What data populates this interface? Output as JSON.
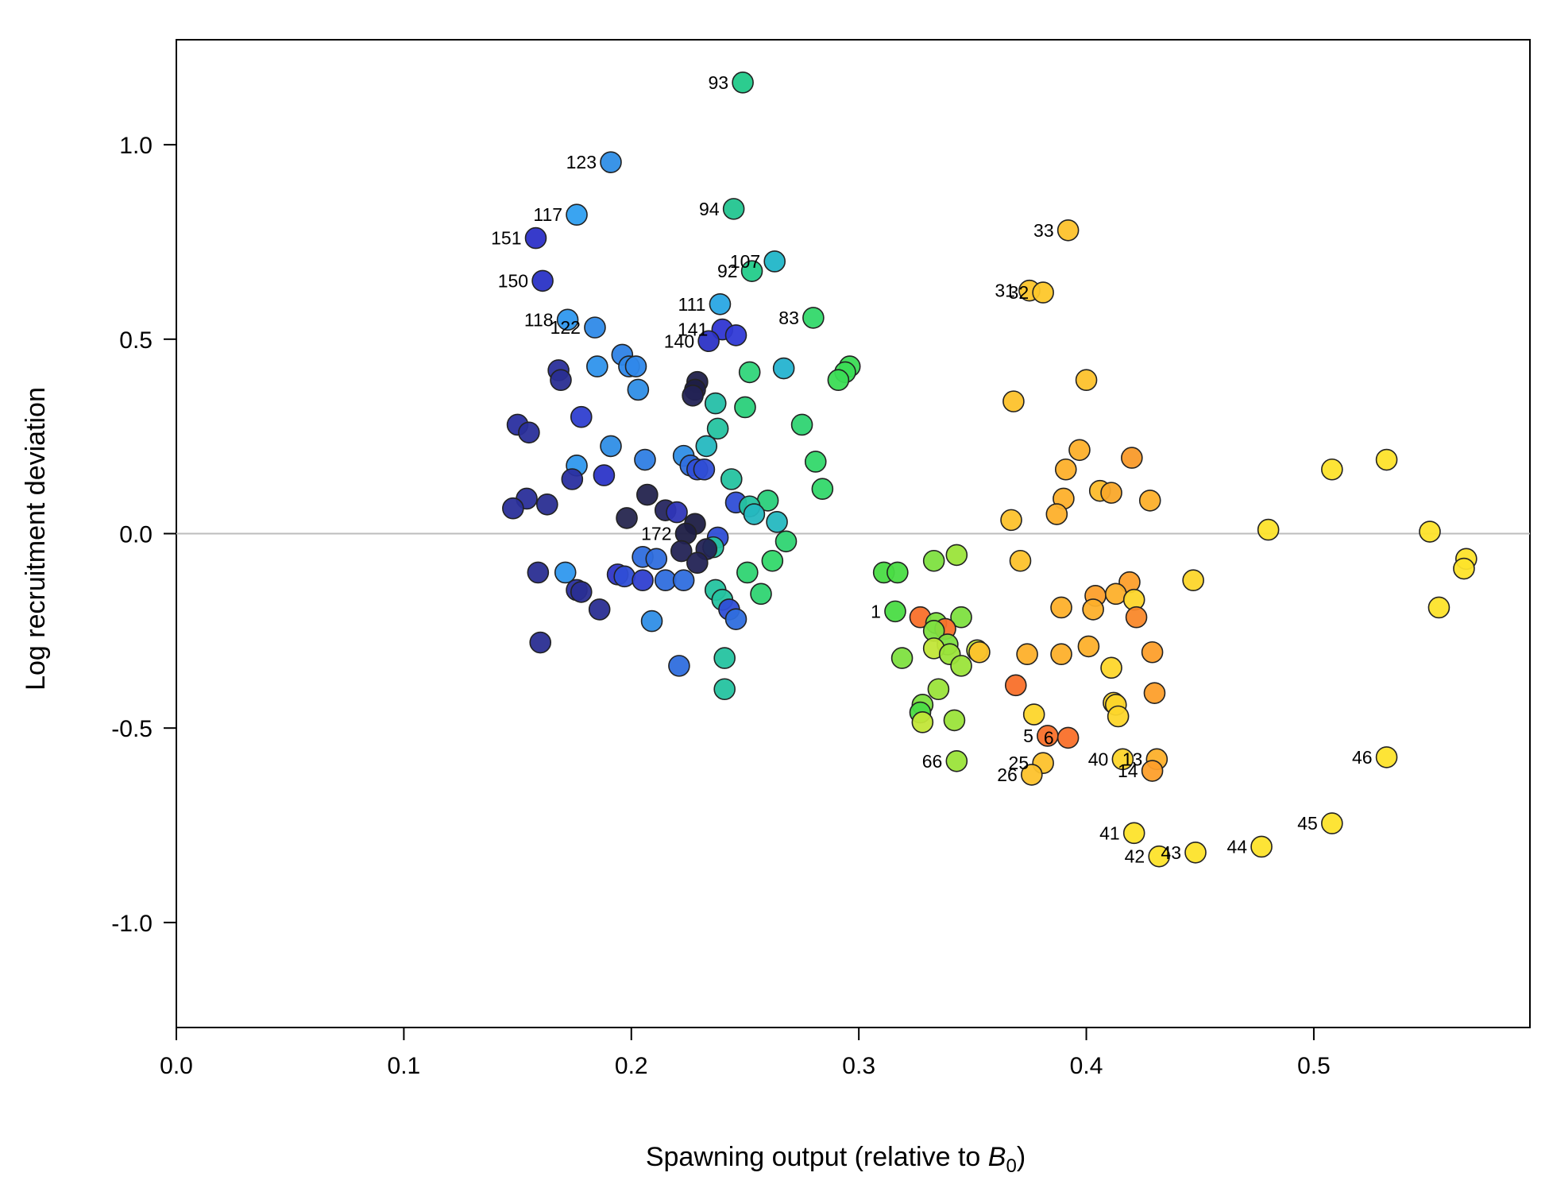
{
  "chart_data": {
    "type": "scatter",
    "title": "",
    "xlabel_main": "Spawning output (relative to ",
    "xlabel_italic": "B",
    "xlabel_sub": "0",
    "xlabel_close": ")",
    "ylabel": "Log recruitment deviation",
    "xlim": [
      0.0,
      0.595
    ],
    "ylim": [
      -1.27,
      1.27
    ],
    "x_ticks": [
      0.0,
      0.1,
      0.2,
      0.3,
      0.4,
      0.5
    ],
    "x_tick_labels": [
      "0.0",
      "0.1",
      "0.2",
      "0.3",
      "0.4",
      "0.5"
    ],
    "y_ticks": [
      -1.0,
      -0.5,
      0.0,
      0.5,
      1.0
    ],
    "y_tick_labels": [
      "-1.0",
      "-0.5",
      "0.0",
      "0.5",
      "1.0"
    ],
    "reference_line": {
      "y": 0,
      "color": "#bdbdbd"
    },
    "grid": false,
    "legend": "none",
    "color_scale": "year sequence: dark navy -> blue -> cyan -> green -> yellow -> orange",
    "points": [
      {
        "x": 0.249,
        "y": 1.16,
        "color": "#21c989",
        "label": "93"
      },
      {
        "x": 0.191,
        "y": 0.955,
        "color": "#2f8ee6",
        "label": "123"
      },
      {
        "x": 0.245,
        "y": 0.835,
        "color": "#23c590",
        "label": "94"
      },
      {
        "x": 0.176,
        "y": 0.82,
        "color": "#2f9ff0",
        "label": "117"
      },
      {
        "x": 0.158,
        "y": 0.76,
        "color": "#2c30c8",
        "label": "151"
      },
      {
        "x": 0.392,
        "y": 0.78,
        "color": "#fdc22c",
        "label": "33"
      },
      {
        "x": 0.263,
        "y": 0.7,
        "color": "#21b6c8",
        "label": "107"
      },
      {
        "x": 0.253,
        "y": 0.675,
        "color": "#23cc8a",
        "label": "92"
      },
      {
        "x": 0.161,
        "y": 0.65,
        "color": "#2a33c6",
        "label": "150"
      },
      {
        "x": 0.375,
        "y": 0.625,
        "color": "#fdc52b",
        "label": "31"
      },
      {
        "x": 0.381,
        "y": 0.62,
        "color": "#fdc72a",
        "label": "32"
      },
      {
        "x": 0.239,
        "y": 0.59,
        "color": "#29a7e4",
        "label": "111"
      },
      {
        "x": 0.28,
        "y": 0.555,
        "color": "#33d86a",
        "label": "83"
      },
      {
        "x": 0.172,
        "y": 0.55,
        "color": "#2f98ee",
        "label": "118"
      },
      {
        "x": 0.184,
        "y": 0.53,
        "color": "#2f8ae8",
        "label": "122"
      },
      {
        "x": 0.24,
        "y": 0.525,
        "color": "#3036d3",
        "label": "141"
      },
      {
        "x": 0.234,
        "y": 0.495,
        "color": "#2c33c6",
        "label": "140"
      },
      {
        "x": 0.246,
        "y": 0.51,
        "color": "#303ad6",
        "label": ""
      },
      {
        "x": 0.196,
        "y": 0.46,
        "color": "#2e82e6",
        "label": ""
      },
      {
        "x": 0.199,
        "y": 0.43,
        "color": "#2f88ea",
        "label": ""
      },
      {
        "x": 0.202,
        "y": 0.43,
        "color": "#2f88ea",
        "label": ""
      },
      {
        "x": 0.185,
        "y": 0.43,
        "color": "#2f93ec",
        "label": ""
      },
      {
        "x": 0.168,
        "y": 0.42,
        "color": "#2a2f9a",
        "label": ""
      },
      {
        "x": 0.169,
        "y": 0.395,
        "color": "#2a2e92",
        "label": ""
      },
      {
        "x": 0.252,
        "y": 0.415,
        "color": "#30d57a",
        "label": ""
      },
      {
        "x": 0.267,
        "y": 0.425,
        "color": "#25b3d0",
        "label": ""
      },
      {
        "x": 0.296,
        "y": 0.43,
        "color": "#3bdc55",
        "label": ""
      },
      {
        "x": 0.294,
        "y": 0.415,
        "color": "#3bdc55",
        "label": ""
      },
      {
        "x": 0.291,
        "y": 0.395,
        "color": "#3bdc55",
        "label": ""
      },
      {
        "x": 0.229,
        "y": 0.39,
        "color": "#20204a",
        "label": ""
      },
      {
        "x": 0.228,
        "y": 0.37,
        "color": "#1e1e44",
        "label": ""
      },
      {
        "x": 0.227,
        "y": 0.355,
        "color": "#232355",
        "label": ""
      },
      {
        "x": 0.203,
        "y": 0.37,
        "color": "#2f8ee6",
        "label": ""
      },
      {
        "x": 0.4,
        "y": 0.395,
        "color": "#fdc22c",
        "label": ""
      },
      {
        "x": 0.237,
        "y": 0.335,
        "color": "#25bfa8",
        "label": ""
      },
      {
        "x": 0.25,
        "y": 0.325,
        "color": "#2ad07a",
        "label": ""
      },
      {
        "x": 0.368,
        "y": 0.34,
        "color": "#fdc22c",
        "label": ""
      },
      {
        "x": 0.178,
        "y": 0.3,
        "color": "#2f3fd0",
        "label": ""
      },
      {
        "x": 0.15,
        "y": 0.28,
        "color": "#2a2fa0",
        "label": ""
      },
      {
        "x": 0.155,
        "y": 0.26,
        "color": "#2a2f9a",
        "label": ""
      },
      {
        "x": 0.238,
        "y": 0.27,
        "color": "#25c3a0",
        "label": ""
      },
      {
        "x": 0.275,
        "y": 0.28,
        "color": "#2fd472",
        "label": ""
      },
      {
        "x": 0.191,
        "y": 0.225,
        "color": "#2f8ee6",
        "label": ""
      },
      {
        "x": 0.233,
        "y": 0.225,
        "color": "#25b8c0",
        "label": ""
      },
      {
        "x": 0.397,
        "y": 0.215,
        "color": "#fdb02b",
        "label": ""
      },
      {
        "x": 0.42,
        "y": 0.195,
        "color": "#f99a2a",
        "label": ""
      },
      {
        "x": 0.206,
        "y": 0.19,
        "color": "#2f7ee4",
        "label": ""
      },
      {
        "x": 0.223,
        "y": 0.2,
        "color": "#2f8ee6",
        "label": ""
      },
      {
        "x": 0.226,
        "y": 0.175,
        "color": "#2f6ede",
        "label": ""
      },
      {
        "x": 0.229,
        "y": 0.165,
        "color": "#2f4ed6",
        "label": ""
      },
      {
        "x": 0.232,
        "y": 0.165,
        "color": "#2f4ed6",
        "label": ""
      },
      {
        "x": 0.176,
        "y": 0.175,
        "color": "#2f98ee",
        "label": ""
      },
      {
        "x": 0.281,
        "y": 0.185,
        "color": "#33d86a",
        "label": ""
      },
      {
        "x": 0.391,
        "y": 0.165,
        "color": "#fdb02b",
        "label": ""
      },
      {
        "x": 0.532,
        "y": 0.19,
        "color": "#fde32b",
        "label": ""
      },
      {
        "x": 0.508,
        "y": 0.165,
        "color": "#fde32b",
        "label": ""
      },
      {
        "x": 0.188,
        "y": 0.15,
        "color": "#2c35c8",
        "label": ""
      },
      {
        "x": 0.174,
        "y": 0.14,
        "color": "#2a2fa0",
        "label": ""
      },
      {
        "x": 0.244,
        "y": 0.14,
        "color": "#25c3a0",
        "label": ""
      },
      {
        "x": 0.284,
        "y": 0.115,
        "color": "#33d86a",
        "label": ""
      },
      {
        "x": 0.406,
        "y": 0.11,
        "color": "#fdbc2b",
        "label": ""
      },
      {
        "x": 0.411,
        "y": 0.105,
        "color": "#f9a82a",
        "label": ""
      },
      {
        "x": 0.207,
        "y": 0.1,
        "color": "#24244e",
        "label": ""
      },
      {
        "x": 0.154,
        "y": 0.09,
        "color": "#2a2f9a",
        "label": ""
      },
      {
        "x": 0.39,
        "y": 0.09,
        "color": "#fdb02b",
        "label": ""
      },
      {
        "x": 0.26,
        "y": 0.085,
        "color": "#2ad07a",
        "label": ""
      },
      {
        "x": 0.246,
        "y": 0.08,
        "color": "#2f4ed6",
        "label": ""
      },
      {
        "x": 0.428,
        "y": 0.085,
        "color": "#fdb02b",
        "label": ""
      },
      {
        "x": 0.163,
        "y": 0.075,
        "color": "#2a2e92",
        "label": ""
      },
      {
        "x": 0.148,
        "y": 0.065,
        "color": "#2a2f9a",
        "label": ""
      },
      {
        "x": 0.252,
        "y": 0.07,
        "color": "#25c3a0",
        "label": ""
      },
      {
        "x": 0.215,
        "y": 0.06,
        "color": "#262660",
        "label": ""
      },
      {
        "x": 0.22,
        "y": 0.055,
        "color": "#2f36b8",
        "label": ""
      },
      {
        "x": 0.387,
        "y": 0.05,
        "color": "#fdb02b",
        "label": ""
      },
      {
        "x": 0.254,
        "y": 0.05,
        "color": "#25b8c0",
        "label": ""
      },
      {
        "x": 0.198,
        "y": 0.04,
        "color": "#26264f",
        "label": ""
      },
      {
        "x": 0.367,
        "y": 0.035,
        "color": "#fdc22c",
        "label": ""
      },
      {
        "x": 0.264,
        "y": 0.03,
        "color": "#25b8c0",
        "label": ""
      },
      {
        "x": 0.228,
        "y": 0.025,
        "color": "#1e1e44",
        "label": ""
      },
      {
        "x": 0.48,
        "y": 0.01,
        "color": "#fde32b",
        "label": ""
      },
      {
        "x": 0.551,
        "y": 0.005,
        "color": "#fde32b",
        "label": ""
      },
      {
        "x": 0.224,
        "y": 0.0,
        "color": "#1e1e44",
        "label": "172"
      },
      {
        "x": 0.238,
        "y": -0.01,
        "color": "#2f4ed6",
        "label": ""
      },
      {
        "x": 0.268,
        "y": -0.02,
        "color": "#2fd472",
        "label": ""
      },
      {
        "x": 0.236,
        "y": -0.035,
        "color": "#25c3a0",
        "label": ""
      },
      {
        "x": 0.233,
        "y": -0.04,
        "color": "#232355",
        "label": ""
      },
      {
        "x": 0.222,
        "y": -0.045,
        "color": "#232355",
        "label": ""
      },
      {
        "x": 0.205,
        "y": -0.06,
        "color": "#2f6ede",
        "label": ""
      },
      {
        "x": 0.211,
        "y": -0.065,
        "color": "#2f6ede",
        "label": ""
      },
      {
        "x": 0.229,
        "y": -0.075,
        "color": "#232355",
        "label": ""
      },
      {
        "x": 0.567,
        "y": -0.065,
        "color": "#fde32b",
        "label": ""
      },
      {
        "x": 0.566,
        "y": -0.09,
        "color": "#fde32b",
        "label": ""
      },
      {
        "x": 0.262,
        "y": -0.07,
        "color": "#33d86a",
        "label": ""
      },
      {
        "x": 0.333,
        "y": -0.07,
        "color": "#7ee040",
        "label": ""
      },
      {
        "x": 0.343,
        "y": -0.055,
        "color": "#9be43a",
        "label": ""
      },
      {
        "x": 0.371,
        "y": -0.07,
        "color": "#fdc22c",
        "label": ""
      },
      {
        "x": 0.171,
        "y": -0.1,
        "color": "#2f98ee",
        "label": ""
      },
      {
        "x": 0.159,
        "y": -0.1,
        "color": "#2a2e92",
        "label": ""
      },
      {
        "x": 0.194,
        "y": -0.105,
        "color": "#2f36c8",
        "label": ""
      },
      {
        "x": 0.197,
        "y": -0.11,
        "color": "#2f4ed6",
        "label": ""
      },
      {
        "x": 0.205,
        "y": -0.12,
        "color": "#2f3fd0",
        "label": ""
      },
      {
        "x": 0.215,
        "y": -0.12,
        "color": "#2f6ede",
        "label": ""
      },
      {
        "x": 0.223,
        "y": -0.12,
        "color": "#2f6ede",
        "label": ""
      },
      {
        "x": 0.251,
        "y": -0.1,
        "color": "#2fd472",
        "label": ""
      },
      {
        "x": 0.311,
        "y": -0.1,
        "color": "#4adc44",
        "label": ""
      },
      {
        "x": 0.317,
        "y": -0.1,
        "color": "#4adc44",
        "label": ""
      },
      {
        "x": 0.447,
        "y": -0.12,
        "color": "#fdd62b",
        "label": ""
      },
      {
        "x": 0.176,
        "y": -0.145,
        "color": "#2a2fa0",
        "label": ""
      },
      {
        "x": 0.178,
        "y": -0.15,
        "color": "#2a2e92",
        "label": ""
      },
      {
        "x": 0.237,
        "y": -0.145,
        "color": "#25c3a0",
        "label": ""
      },
      {
        "x": 0.257,
        "y": -0.155,
        "color": "#2fd472",
        "label": ""
      },
      {
        "x": 0.404,
        "y": -0.16,
        "color": "#fd9f2b",
        "label": ""
      },
      {
        "x": 0.419,
        "y": -0.125,
        "color": "#fd9f2b",
        "label": ""
      },
      {
        "x": 0.413,
        "y": -0.155,
        "color": "#fdb02b",
        "label": ""
      },
      {
        "x": 0.421,
        "y": -0.17,
        "color": "#fdd62b",
        "label": ""
      },
      {
        "x": 0.555,
        "y": -0.19,
        "color": "#fde32b",
        "label": ""
      },
      {
        "x": 0.186,
        "y": -0.195,
        "color": "#2a2e92",
        "label": ""
      },
      {
        "x": 0.24,
        "y": -0.17,
        "color": "#25c3a0",
        "label": ""
      },
      {
        "x": 0.243,
        "y": -0.195,
        "color": "#2f4ed6",
        "label": ""
      },
      {
        "x": 0.389,
        "y": -0.19,
        "color": "#fdb02b",
        "label": ""
      },
      {
        "x": 0.403,
        "y": -0.195,
        "color": "#fdb02b",
        "label": ""
      },
      {
        "x": 0.316,
        "y": -0.2,
        "color": "#4adc44",
        "label": "1"
      },
      {
        "x": 0.327,
        "y": -0.215,
        "color": "#f9702a",
        "label": ""
      },
      {
        "x": 0.345,
        "y": -0.215,
        "color": "#7ee040",
        "label": ""
      },
      {
        "x": 0.422,
        "y": -0.215,
        "color": "#f9882a",
        "label": ""
      },
      {
        "x": 0.246,
        "y": -0.22,
        "color": "#2f6ede",
        "label": ""
      },
      {
        "x": 0.209,
        "y": -0.225,
        "color": "#2f8ee6",
        "label": ""
      },
      {
        "x": 0.334,
        "y": -0.23,
        "color": "#7ee040",
        "label": ""
      },
      {
        "x": 0.338,
        "y": -0.245,
        "color": "#f9702a",
        "label": ""
      },
      {
        "x": 0.333,
        "y": -0.25,
        "color": "#7ee040",
        "label": ""
      },
      {
        "x": 0.339,
        "y": -0.285,
        "color": "#7ee040",
        "label": ""
      },
      {
        "x": 0.401,
        "y": -0.29,
        "color": "#fdb02b",
        "label": ""
      },
      {
        "x": 0.333,
        "y": -0.295,
        "color": "#c2e638",
        "label": ""
      },
      {
        "x": 0.352,
        "y": -0.3,
        "color": "#c2e638",
        "label": ""
      },
      {
        "x": 0.353,
        "y": -0.305,
        "color": "#fdc22c",
        "label": ""
      },
      {
        "x": 0.34,
        "y": -0.31,
        "color": "#9be43a",
        "label": ""
      },
      {
        "x": 0.374,
        "y": -0.31,
        "color": "#fdb02b",
        "label": ""
      },
      {
        "x": 0.389,
        "y": -0.31,
        "color": "#fdb02b",
        "label": ""
      },
      {
        "x": 0.429,
        "y": -0.305,
        "color": "#fd9f2b",
        "label": ""
      },
      {
        "x": 0.319,
        "y": -0.32,
        "color": "#7ee040",
        "label": ""
      },
      {
        "x": 0.241,
        "y": -0.32,
        "color": "#25c3a0",
        "label": ""
      },
      {
        "x": 0.221,
        "y": -0.34,
        "color": "#2f6ede",
        "label": ""
      },
      {
        "x": 0.345,
        "y": -0.34,
        "color": "#9be43a",
        "label": ""
      },
      {
        "x": 0.16,
        "y": -0.28,
        "color": "#2a2e92",
        "label": ""
      },
      {
        "x": 0.411,
        "y": -0.345,
        "color": "#fdd62b",
        "label": ""
      },
      {
        "x": 0.369,
        "y": -0.39,
        "color": "#f9702a",
        "label": ""
      },
      {
        "x": 0.241,
        "y": -0.4,
        "color": "#25c3a0",
        "label": ""
      },
      {
        "x": 0.335,
        "y": -0.4,
        "color": "#9be43a",
        "label": ""
      },
      {
        "x": 0.43,
        "y": -0.41,
        "color": "#fd9f2b",
        "label": ""
      },
      {
        "x": 0.412,
        "y": -0.435,
        "color": "#fdd62b",
        "label": ""
      },
      {
        "x": 0.413,
        "y": -0.44,
        "color": "#fdd62b",
        "label": ""
      },
      {
        "x": 0.328,
        "y": -0.44,
        "color": "#7ee040",
        "label": ""
      },
      {
        "x": 0.414,
        "y": -0.47,
        "color": "#fdd62b",
        "label": ""
      },
      {
        "x": 0.327,
        "y": -0.46,
        "color": "#4adc44",
        "label": ""
      },
      {
        "x": 0.377,
        "y": -0.465,
        "color": "#fdd62b",
        "label": ""
      },
      {
        "x": 0.342,
        "y": -0.48,
        "color": "#9be43a",
        "label": ""
      },
      {
        "x": 0.328,
        "y": -0.485,
        "color": "#c2e638",
        "label": ""
      },
      {
        "x": 0.383,
        "y": -0.52,
        "color": "#f9702a",
        "label": "5"
      },
      {
        "x": 0.392,
        "y": -0.525,
        "color": "#f9702a",
        "label": "6"
      },
      {
        "x": 0.343,
        "y": -0.585,
        "color": "#9be43a",
        "label": "66"
      },
      {
        "x": 0.416,
        "y": -0.58,
        "color": "#fdd62b",
        "label": "40"
      },
      {
        "x": 0.431,
        "y": -0.58,
        "color": "#fdb02b",
        "label": "13"
      },
      {
        "x": 0.429,
        "y": -0.61,
        "color": "#fd9f2b",
        "label": "14"
      },
      {
        "x": 0.381,
        "y": -0.59,
        "color": "#fdc22c",
        "label": "25"
      },
      {
        "x": 0.376,
        "y": -0.62,
        "color": "#fdc22c",
        "label": "26"
      },
      {
        "x": 0.532,
        "y": -0.575,
        "color": "#fde32b",
        "label": "46"
      },
      {
        "x": 0.508,
        "y": -0.745,
        "color": "#fde32b",
        "label": "45"
      },
      {
        "x": 0.421,
        "y": -0.77,
        "color": "#fde32b",
        "label": "41"
      },
      {
        "x": 0.477,
        "y": -0.805,
        "color": "#fde32b",
        "label": "44"
      },
      {
        "x": 0.448,
        "y": -0.82,
        "color": "#fde32b",
        "label": "43"
      },
      {
        "x": 0.432,
        "y": -0.83,
        "color": "#fde32b",
        "label": "42"
      }
    ]
  }
}
